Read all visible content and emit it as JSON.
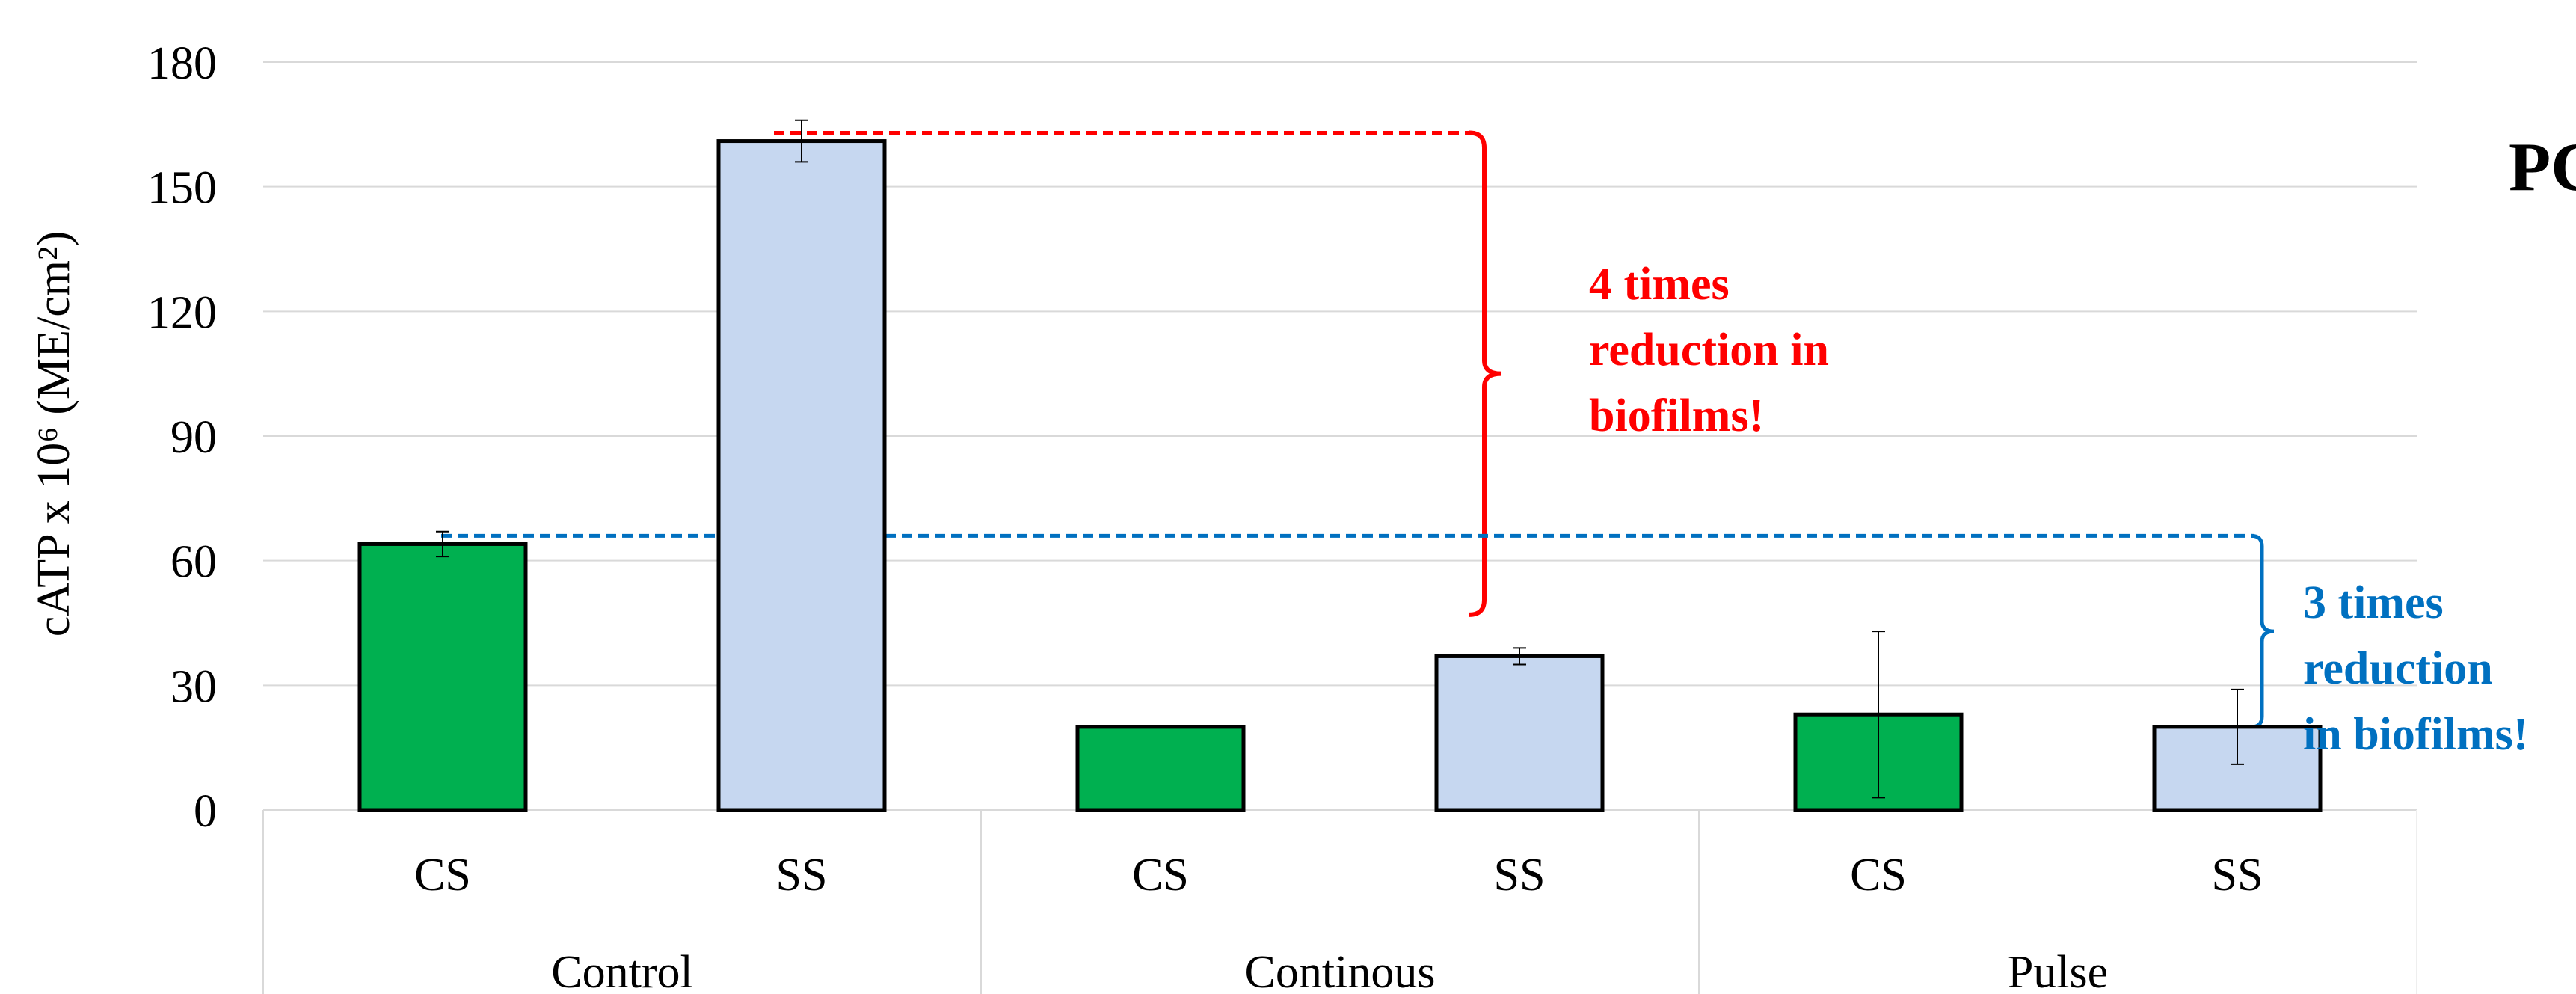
{
  "chart_data": {
    "type": "bar",
    "ylabel": "cATP x 10⁶ (ME/cm²)",
    "ylim": [
      0,
      180
    ],
    "yticks": [
      0,
      30,
      60,
      90,
      120,
      150,
      180
    ],
    "groups": [
      "Control",
      "Continous",
      "Pulse"
    ],
    "categories": [
      "CS",
      "SS",
      "CS",
      "SS",
      "CS",
      "SS"
    ],
    "values": [
      64,
      161,
      20,
      37,
      23,
      20
    ],
    "errors": [
      3,
      5,
      0,
      2,
      20,
      9
    ],
    "colors": [
      "#00b050",
      "#c6d7f0",
      "#00b050",
      "#c6d7f0",
      "#00b050",
      "#c6d7f0"
    ],
    "grid": true,
    "annotations": [
      {
        "text_lines": [
          "4 times",
          "reduction in",
          "biofilms!"
        ],
        "color": "#ff0000",
        "from_value": 163,
        "to_value": 47
      },
      {
        "text_lines": [
          "3 times",
          "reduction",
          "in biofilms!"
        ],
        "color": "#0070c0",
        "from_value": 66,
        "to_value": 20
      }
    ],
    "side_text": "PC"
  }
}
